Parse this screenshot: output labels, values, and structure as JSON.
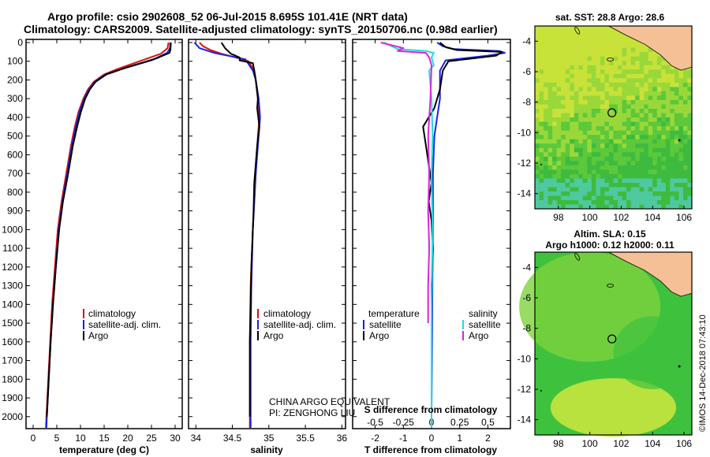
{
  "header": {
    "title_line1": "Argo profile: csio 2902608_52 06-Jul-2015 8.695S 101.41E (NRT data)",
    "title_line2": "Climatology: CARS2009. Satellite-adjusted climatology: synTS_20150706.nc (0.98d earlier)"
  },
  "colors": {
    "climatology": "#dd1111",
    "satellite": "#1a22dd",
    "argo": "#000000",
    "s_satellite": "#22dddd",
    "s_argo": "#dd22dd",
    "land": "#f5c095",
    "sea_green": "#3ec23e",
    "sea_yellow": "#c8e83a"
  },
  "depth_axis": {
    "ticks": [
      0,
      100,
      200,
      300,
      400,
      500,
      600,
      700,
      800,
      900,
      1000,
      1100,
      1200,
      1300,
      1400,
      1500,
      1600,
      1700,
      1800,
      1900,
      2000
    ],
    "range": [
      0,
      2060
    ]
  },
  "chart_data": [
    {
      "type": "line",
      "name": "temperature",
      "xlabel": "temperature (deg C)",
      "xlim": [
        -1.5,
        31.5
      ],
      "xticks": [
        "0",
        "5",
        "10",
        "15",
        "20",
        "25",
        "30"
      ],
      "xtick_values": [
        0,
        5,
        10,
        15,
        20,
        25,
        30
      ],
      "series": [
        {
          "name": "climatology",
          "color_key": "climatology",
          "points": [
            [
              28.6,
              0
            ],
            [
              28.4,
              30
            ],
            [
              27.0,
              60
            ],
            [
              22.5,
              100
            ],
            [
              18.0,
              140
            ],
            [
              15.0,
              170
            ],
            [
              12.8,
              210
            ],
            [
              11.6,
              250
            ],
            [
              10.6,
              300
            ],
            [
              9.6,
              370
            ],
            [
              8.8,
              450
            ],
            [
              8.0,
              550
            ],
            [
              7.0,
              700
            ],
            [
              6.0,
              850
            ],
            [
              5.2,
              1000
            ],
            [
              4.6,
              1200
            ],
            [
              4.0,
              1400
            ],
            [
              3.6,
              1600
            ],
            [
              3.2,
              1800
            ],
            [
              2.8,
              2000
            ],
            [
              2.7,
              2060
            ]
          ]
        },
        {
          "name": "satellite-adj. clim.",
          "color_key": "satellite",
          "points": [
            [
              29.0,
              0
            ],
            [
              28.9,
              30
            ],
            [
              28.3,
              55
            ],
            [
              25.0,
              95
            ],
            [
              19.0,
              140
            ],
            [
              15.3,
              170
            ],
            [
              13.0,
              210
            ],
            [
              11.8,
              250
            ],
            [
              10.8,
              300
            ],
            [
              9.8,
              370
            ],
            [
              9.0,
              450
            ],
            [
              8.2,
              550
            ],
            [
              7.2,
              700
            ],
            [
              6.2,
              850
            ],
            [
              5.4,
              1000
            ],
            [
              4.8,
              1200
            ],
            [
              4.2,
              1400
            ],
            [
              3.7,
              1600
            ],
            [
              3.3,
              1800
            ],
            [
              2.9,
              2000
            ],
            [
              2.8,
              2060
            ]
          ]
        },
        {
          "name": "Argo",
          "color_key": "argo",
          "points": [
            [
              29.1,
              0
            ],
            [
              29.0,
              40
            ],
            [
              28.8,
              55
            ],
            [
              26.0,
              85
            ],
            [
              19.5,
              135
            ],
            [
              15.5,
              170
            ],
            [
              13.2,
              210
            ],
            [
              12.0,
              250
            ],
            [
              11.0,
              300
            ],
            [
              10.1,
              370
            ],
            [
              9.3,
              450
            ],
            [
              8.4,
              550
            ],
            [
              7.4,
              700
            ],
            [
              6.3,
              850
            ],
            [
              5.5,
              1000
            ],
            [
              4.8,
              1200
            ],
            [
              4.2,
              1400
            ],
            [
              3.7,
              1600
            ],
            [
              3.3,
              1800
            ],
            [
              2.9,
              2000
            ]
          ]
        }
      ],
      "legend": [
        "climatology",
        "satellite-adj. clim.",
        "Argo"
      ]
    },
    {
      "type": "line",
      "name": "salinity",
      "xlabel": "salinity",
      "xlim": [
        33.9,
        36.05
      ],
      "xticks": [
        "34",
        "34.5",
        "35",
        "35.5",
        "36"
      ],
      "xtick_values": [
        34,
        34.5,
        35,
        35.5,
        36
      ],
      "series": [
        {
          "name": "climatology",
          "color_key": "climatology",
          "points": [
            [
              34.05,
              0
            ],
            [
              34.1,
              20
            ],
            [
              34.2,
              40
            ],
            [
              34.35,
              60
            ],
            [
              34.55,
              80
            ],
            [
              34.72,
              100
            ],
            [
              34.8,
              150
            ],
            [
              34.82,
              200
            ],
            [
              34.85,
              300
            ],
            [
              34.87,
              400
            ],
            [
              34.85,
              500
            ],
            [
              34.82,
              700
            ],
            [
              34.78,
              1000
            ],
            [
              34.75,
              1300
            ],
            [
              34.74,
              1600
            ],
            [
              34.74,
              2000
            ],
            [
              34.74,
              2060
            ]
          ]
        },
        {
          "name": "satellite-adj. clim.",
          "color_key": "satellite",
          "points": [
            [
              33.98,
              0
            ],
            [
              34.05,
              30
            ],
            [
              34.25,
              55
            ],
            [
              34.5,
              75
            ],
            [
              34.68,
              90
            ],
            [
              34.78,
              150
            ],
            [
              34.82,
              200
            ],
            [
              34.86,
              300
            ],
            [
              34.88,
              400
            ],
            [
              34.86,
              500
            ],
            [
              34.82,
              700
            ],
            [
              34.78,
              1000
            ],
            [
              34.76,
              1300
            ],
            [
              34.75,
              1600
            ],
            [
              34.75,
              2000
            ],
            [
              34.75,
              2060
            ]
          ]
        },
        {
          "name": "Argo",
          "color_key": "argo",
          "points": [
            [
              34.35,
              0
            ],
            [
              34.4,
              30
            ],
            [
              34.48,
              60
            ],
            [
              34.6,
              80
            ],
            [
              34.6,
              95
            ],
            [
              34.78,
              110
            ],
            [
              34.8,
              150
            ],
            [
              34.82,
              200
            ],
            [
              34.85,
              300
            ],
            [
              34.84,
              350
            ],
            [
              34.87,
              450
            ],
            [
              34.84,
              550
            ],
            [
              34.82,
              650
            ],
            [
              34.8,
              750
            ],
            [
              34.79,
              900
            ],
            [
              34.78,
              1000
            ],
            [
              34.76,
              1200
            ],
            [
              34.75,
              1400
            ],
            [
              34.74,
              1600
            ],
            [
              34.74,
              1800
            ],
            [
              34.74,
              2000
            ]
          ]
        }
      ],
      "legend": [
        "climatology",
        "satellite-adj. clim.",
        "Argo"
      ],
      "annotation_line1": "CHINA ARGO EQUIVALENT",
      "annotation_line2": "PI: ZENGHONG LIU"
    },
    {
      "type": "line",
      "name": "differences",
      "xlabel": "T difference from climatology",
      "top_xlabel": "S difference from climatology",
      "xlim": [
        -2.8,
        2.8
      ],
      "xticks": [
        "-2",
        "-1",
        "0",
        "1",
        "2"
      ],
      "xtick_values": [
        -2,
        -1,
        0,
        1,
        2
      ],
      "top_xticks": [
        "-0.5",
        "-0.25",
        "0",
        "0.25",
        "0.5"
      ],
      "top_xtick_values": [
        -0.5,
        -0.25,
        0,
        0.25,
        0.5
      ],
      "series": [
        {
          "name": "T satellite",
          "color_key": "satellite",
          "scale": 1,
          "points": [
            [
              0.2,
              0
            ],
            [
              0.4,
              20
            ],
            [
              0.8,
              35
            ],
            [
              2.4,
              45
            ],
            [
              2.6,
              55
            ],
            [
              2.0,
              70
            ],
            [
              0.5,
              95
            ],
            [
              0.3,
              150
            ],
            [
              0.3,
              300
            ],
            [
              0.2,
              400
            ],
            [
              0.1,
              500
            ],
            [
              0.05,
              700
            ],
            [
              0.05,
              1000
            ],
            [
              0.03,
              1300
            ],
            [
              0.02,
              1600
            ],
            [
              0.0,
              2000
            ]
          ]
        },
        {
          "name": "T Argo",
          "color_key": "argo",
          "scale": 1,
          "points": [
            [
              0.3,
              0
            ],
            [
              0.5,
              25
            ],
            [
              0.9,
              40
            ],
            [
              2.5,
              50
            ],
            [
              2.3,
              70
            ],
            [
              0.6,
              100
            ],
            [
              0.4,
              150
            ],
            [
              0.3,
              250
            ],
            [
              0.1,
              350
            ],
            [
              -0.3,
              450
            ],
            [
              -0.2,
              550
            ],
            [
              -0.1,
              650
            ],
            [
              0.0,
              750
            ],
            [
              -0.1,
              850
            ],
            [
              0.0,
              950
            ],
            [
              0.05,
              1100
            ],
            [
              0.0,
              1300
            ],
            [
              0.0,
              1600
            ],
            [
              0.0,
              1800
            ],
            [
              0.0,
              2000
            ]
          ]
        },
        {
          "name": "S satellite",
          "color_key": "s_satellite",
          "scale": 4,
          "points": [
            [
              -0.42,
              0
            ],
            [
              -0.3,
              35
            ],
            [
              -0.05,
              45
            ],
            [
              0.02,
              55
            ],
            [
              0.0,
              80
            ],
            [
              0.02,
              120
            ],
            [
              -0.02,
              150
            ],
            [
              0.0,
              300
            ],
            [
              0.01,
              500
            ],
            [
              0.0,
              700
            ],
            [
              0.01,
              1000
            ],
            [
              0.0,
              1400
            ],
            [
              0.0,
              2000
            ],
            [
              0.0,
              2060
            ]
          ]
        },
        {
          "name": "S Argo",
          "color_key": "s_argo",
          "scale": 4,
          "points": [
            [
              -0.45,
              0
            ],
            [
              -0.25,
              30
            ],
            [
              -0.3,
              45
            ],
            [
              -0.05,
              55
            ],
            [
              -0.02,
              80
            ],
            [
              0.0,
              120
            ],
            [
              -0.01,
              300
            ],
            [
              -0.03,
              500
            ],
            [
              -0.02,
              700
            ],
            [
              -0.03,
              900
            ],
            [
              -0.02,
              1100
            ],
            [
              -0.03,
              1300
            ],
            [
              -0.03,
              1500
            ]
          ]
        }
      ],
      "legend_left_title": "temperature",
      "legend_right_title": "salinity",
      "legend_left": [
        "satellite",
        "Argo"
      ],
      "legend_right": [
        "satellite",
        "Argo"
      ]
    }
  ],
  "maps": {
    "map1": {
      "title": "sat. SST: 28.8 Argo: 28.6",
      "yticks": [
        "-4",
        "-6",
        "-8",
        "-10",
        "-12",
        "-14"
      ],
      "xticks": [
        "98",
        "100",
        "102",
        "104",
        "106"
      ],
      "lon_range": [
        96.5,
        106.5
      ],
      "lat_range": [
        -3,
        -15
      ],
      "float_position": [
        101.41,
        -8.695
      ]
    },
    "map2": {
      "title_line1": "Altim. SLA: 0.15",
      "title_line2": "Argo h1000: 0.12 h2000: 0.11",
      "yticks": [
        "-4",
        "-6",
        "-8",
        "-10",
        "-12",
        "-14"
      ],
      "xticks": [
        "98",
        "100",
        "102",
        "104",
        "106"
      ],
      "lon_range": [
        96.5,
        106.5
      ],
      "lat_range": [
        -3,
        -15
      ],
      "float_position": [
        101.41,
        -8.695
      ]
    }
  },
  "footer": {
    "stamp": "©IMOS 14-Dec-2018 07:43:10"
  }
}
